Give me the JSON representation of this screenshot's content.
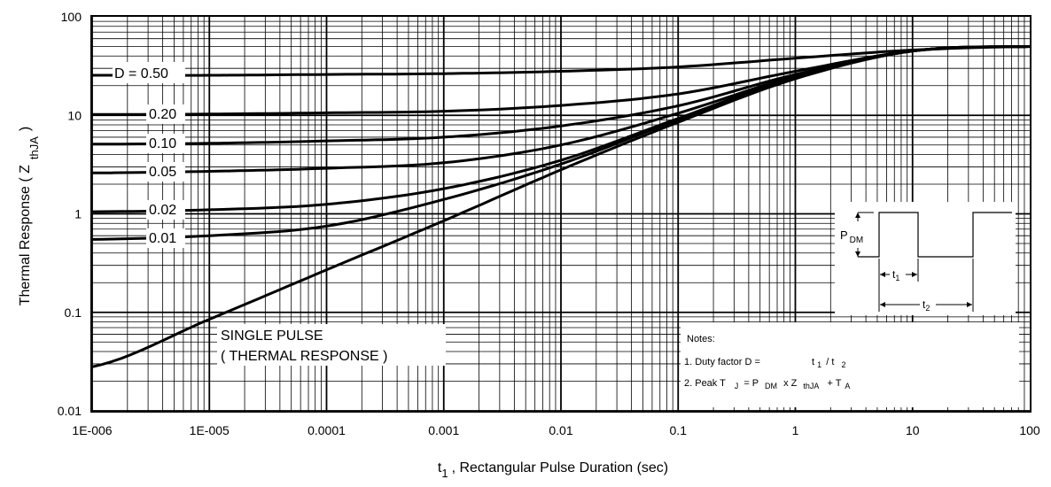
{
  "chart_data": {
    "type": "line",
    "x_scale": "log",
    "y_scale": "log",
    "xlim": [
      1e-06,
      100
    ],
    "ylim": [
      0.01,
      100
    ],
    "grid": true,
    "ylabel": "Thermal Response ( Z thJA )",
    "ylabel_main": "Thermal Response ( Z",
    "ylabel_sub": "thJA",
    "ylabel_close": ")",
    "xlabel": "t1 , Rectangular Pulse Duration (sec)",
    "xlabel_t": "t",
    "xlabel_sub": "1",
    "xlabel_rest": ", Rectangular Pulse Duration (sec)",
    "x_tick_labels": [
      "1E-006",
      "1E-005",
      "0.0001",
      "0.001",
      "0.01",
      "0.1",
      "1",
      "10",
      "100"
    ],
    "x_ticks": [
      1e-06,
      1e-05,
      0.0001,
      0.001,
      0.01,
      0.1,
      1,
      10,
      100
    ],
    "y_tick_labels": [
      "0.01",
      "0.1",
      "1",
      "10",
      "100"
    ],
    "y_ticks": [
      0.01,
      0.1,
      1,
      10,
      100
    ],
    "series": [
      {
        "name": "D = 0.50",
        "x": [
          1e-06,
          1e-05,
          0.0001,
          0.001,
          0.01,
          0.1,
          1,
          10,
          100
        ],
        "y": [
          25.5,
          25.5,
          26,
          26.5,
          28,
          31,
          38,
          46,
          50
        ]
      },
      {
        "name": "0.20",
        "x": [
          1e-06,
          1e-05,
          0.0001,
          0.001,
          0.01,
          0.1,
          1,
          10,
          100
        ],
        "y": [
          10.2,
          10.3,
          10.6,
          11,
          12.6,
          16.5,
          28,
          45,
          50
        ]
      },
      {
        "name": "0.10",
        "x": [
          1e-06,
          1e-05,
          0.0001,
          0.001,
          0.01,
          0.1,
          1,
          10,
          100
        ],
        "y": [
          5.1,
          5.2,
          5.5,
          6,
          7.8,
          12.5,
          26,
          45,
          50
        ]
      },
      {
        "name": "0.05",
        "x": [
          1e-06,
          1e-05,
          0.0001,
          0.001,
          0.01,
          0.1,
          1,
          10,
          100
        ],
        "y": [
          2.6,
          2.7,
          2.9,
          3.3,
          5,
          10.5,
          25,
          45,
          50
        ]
      },
      {
        "name": "0.02",
        "x": [
          1e-06,
          1e-05,
          0.0001,
          0.001,
          0.01,
          0.1,
          1,
          10,
          100
        ],
        "y": [
          1.05,
          1.1,
          1.25,
          1.8,
          3.5,
          9.3,
          24.5,
          45,
          50
        ]
      },
      {
        "name": "0.01",
        "x": [
          1e-06,
          1e-05,
          0.0001,
          0.001,
          0.01,
          0.1,
          1,
          10,
          100
        ],
        "y": [
          0.55,
          0.6,
          0.75,
          1.4,
          3.2,
          9,
          24,
          45,
          50
        ]
      },
      {
        "name": "SINGLE PULSE",
        "x": [
          1e-06,
          1e-05,
          0.0001,
          0.001,
          0.01,
          0.1,
          1,
          10,
          100
        ],
        "y": [
          0.028,
          0.085,
          0.27,
          0.85,
          2.8,
          8.5,
          23.5,
          45,
          50
        ]
      }
    ],
    "curve_labels": [
      "D = 0.50",
      "0.20",
      "0.10",
      "0.05",
      "0.02",
      "0.01"
    ],
    "annotation_single_pulse_1": "SINGLE PULSE",
    "annotation_single_pulse_2": "( THERMAL RESPONSE )",
    "inset": {
      "pdm_main": "P",
      "pdm_sub": "DM",
      "t1_main": "t",
      "t1_sub": "1",
      "t2_main": "t",
      "t2_sub": "2"
    },
    "notes": {
      "title": "Notes:",
      "line1_prefix": "1. Duty factor D =",
      "line1_t1": "t",
      "line1_sub1": "1",
      "line1_slash": "/ t",
      "line1_sub2": "2",
      "line2_prefix": "2. Peak T",
      "line2_subj": "J",
      "line2_eq": "= P",
      "line2_subdm": "DM",
      "line2_x": "x Z",
      "line2_subth": "thJA",
      "line2_plus": "+ T",
      "line2_suba": "A"
    }
  }
}
